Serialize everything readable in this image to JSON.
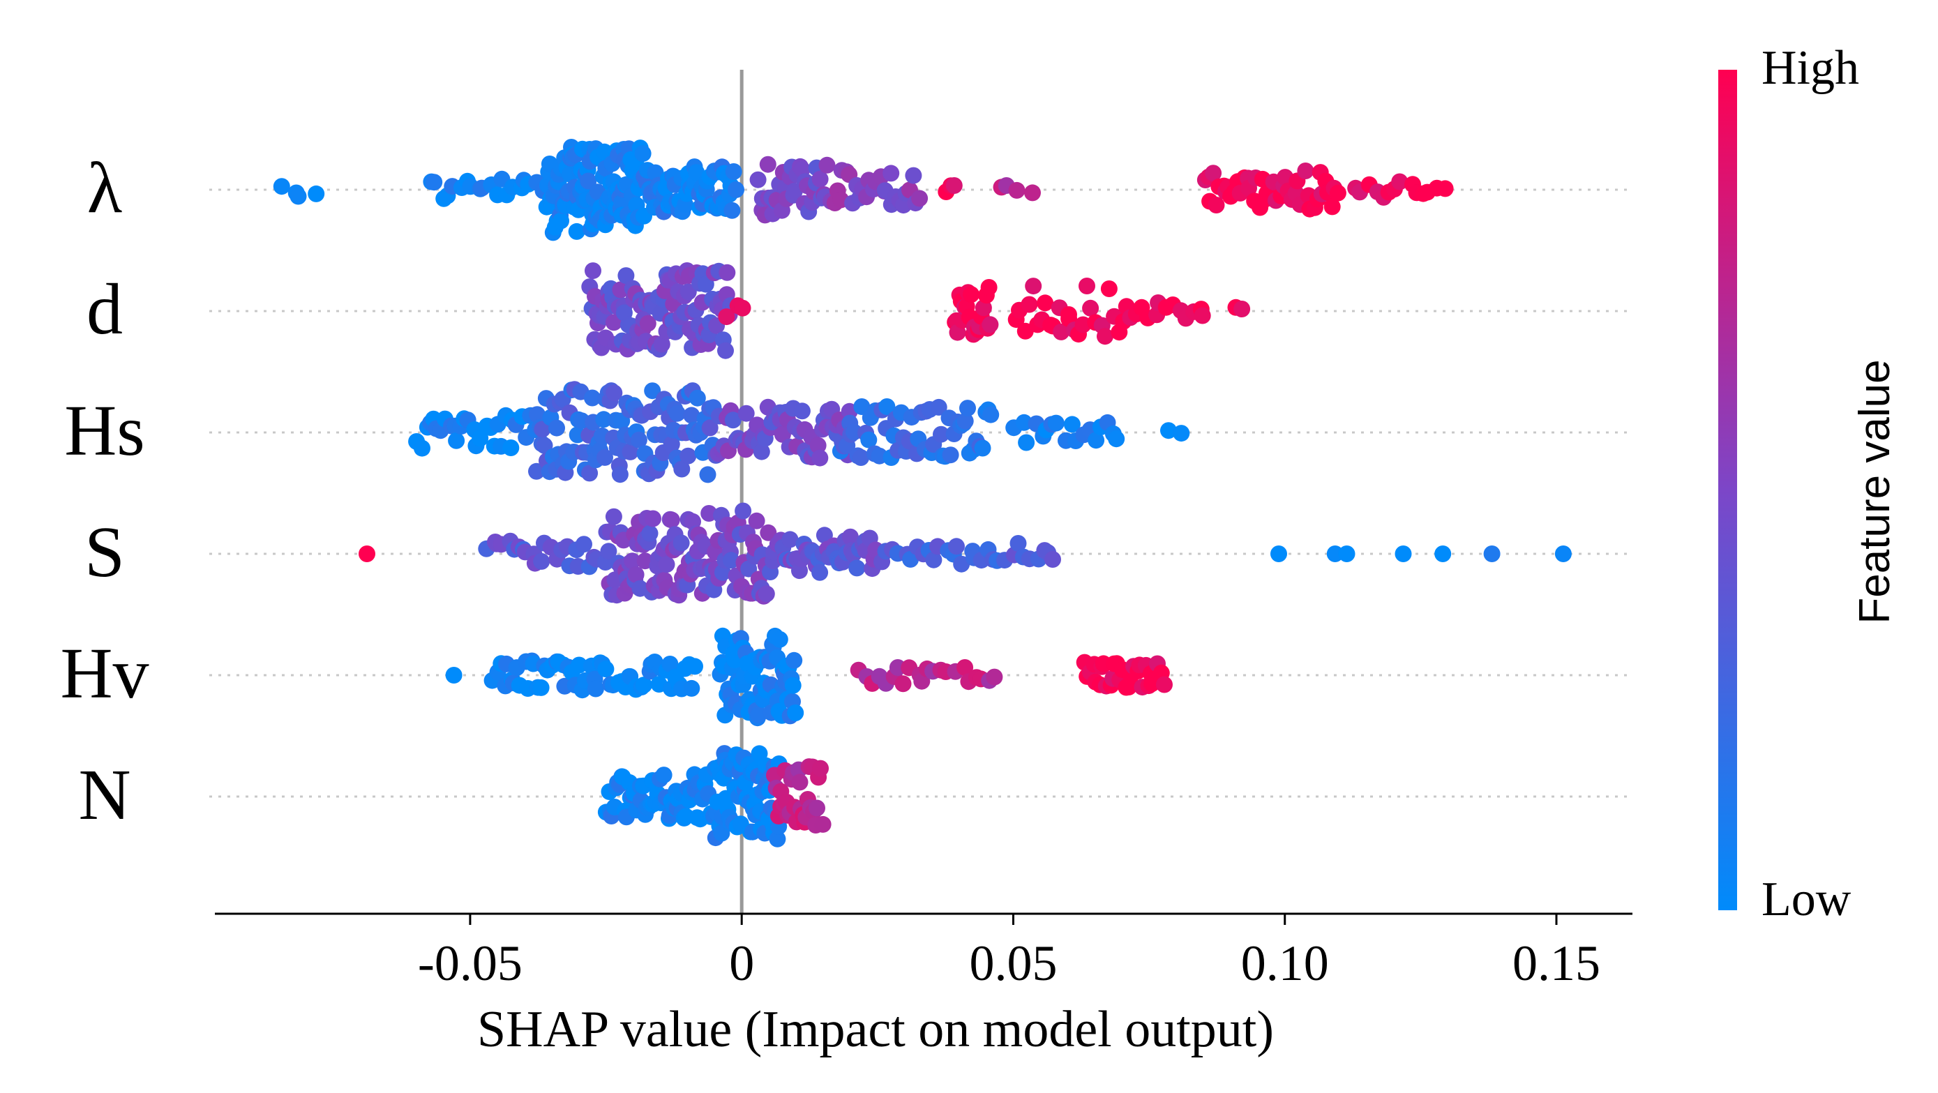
{
  "chart_data": {
    "type": "scatter",
    "subtype": "shap-beeswarm-summary",
    "xlabel": "SHAP value (Impact on model output)",
    "x_tick_labels": [
      "-0.05",
      "0",
      "0.05",
      "0.10",
      "0.15"
    ],
    "x_ticks": [
      -0.05,
      0,
      0.05,
      0.1,
      0.15
    ],
    "xlim": [
      -0.097,
      0.164
    ],
    "zero_line": 0,
    "colorbar": {
      "title": "Feature value",
      "high_label": "High",
      "low_label": "Low",
      "high_color": "#ff0051",
      "mid_color": "#7c46c8",
      "low_color": "#008bfb"
    },
    "features": [
      {
        "name": "λ",
        "clusters": [
          {
            "lo": -0.086,
            "hi": -0.078,
            "n": 4,
            "spread": 0.2,
            "color": 0
          },
          {
            "lo": -0.058,
            "hi": -0.036,
            "n": 20,
            "spread": 0.3,
            "color": 0.05
          },
          {
            "lo": -0.036,
            "hi": -0.018,
            "n": 110,
            "spread": 1.0,
            "color": 0.05
          },
          {
            "lo": -0.018,
            "hi": -0.001,
            "n": 60,
            "spread": 0.55,
            "color": 0.08
          },
          {
            "lo": 0.003,
            "hi": 0.016,
            "n": 35,
            "spread": 0.6,
            "color": 0.45
          },
          {
            "lo": 0.016,
            "hi": 0.033,
            "n": 28,
            "spread": 0.45,
            "color": 0.55
          },
          {
            "lo": 0.037,
            "hi": 0.04,
            "n": 3,
            "spread": 0.1,
            "color": 0.95
          },
          {
            "lo": 0.047,
            "hi": 0.054,
            "n": 4,
            "spread": 0.1,
            "color": 0.75
          },
          {
            "lo": 0.085,
            "hi": 0.11,
            "n": 45,
            "spread": 0.45,
            "color": 0.96
          },
          {
            "lo": 0.112,
            "hi": 0.13,
            "n": 14,
            "spread": 0.2,
            "color": 0.96
          }
        ]
      },
      {
        "name": "d",
        "clusters": [
          {
            "lo": -0.028,
            "hi": -0.002,
            "n": 110,
            "spread": 0.95,
            "color": 0.45
          },
          {
            "lo": -0.003,
            "hi": 0.001,
            "n": 3,
            "spread": 0.15,
            "color": 0.8
          },
          {
            "lo": 0.039,
            "hi": 0.046,
            "n": 22,
            "spread": 0.55,
            "color": 0.97
          },
          {
            "lo": 0.05,
            "hi": 0.072,
            "n": 28,
            "spread": 0.6,
            "color": 0.96
          },
          {
            "lo": 0.072,
            "hi": 0.086,
            "n": 12,
            "spread": 0.2,
            "color": 0.96
          },
          {
            "lo": 0.09,
            "hi": 0.093,
            "n": 2,
            "spread": 0.1,
            "color": 0.96
          }
        ]
      },
      {
        "name": "Hs",
        "clusters": [
          {
            "lo": -0.06,
            "hi": -0.038,
            "n": 30,
            "spread": 0.4,
            "color": 0.05
          },
          {
            "lo": -0.038,
            "hi": -0.005,
            "n": 110,
            "spread": 1.0,
            "color": 0.25
          },
          {
            "lo": -0.005,
            "hi": 0.02,
            "n": 60,
            "spread": 0.6,
            "color": 0.45
          },
          {
            "lo": 0.018,
            "hi": 0.046,
            "n": 55,
            "spread": 0.6,
            "color": 0.2
          },
          {
            "lo": 0.05,
            "hi": 0.07,
            "n": 18,
            "spread": 0.25,
            "color": 0.05
          },
          {
            "lo": 0.077,
            "hi": 0.081,
            "n": 2,
            "spread": 0.1,
            "color": 0.05
          }
        ]
      },
      {
        "name": "S",
        "clusters": [
          {
            "lo": -0.069,
            "hi": -0.069,
            "n": 1,
            "spread": 0.0,
            "color": 0.96
          },
          {
            "lo": -0.047,
            "hi": -0.025,
            "n": 25,
            "spread": 0.3,
            "color": 0.35
          },
          {
            "lo": -0.025,
            "hi": 0.005,
            "n": 120,
            "spread": 1.0,
            "color": 0.45
          },
          {
            "lo": 0.005,
            "hi": 0.025,
            "n": 45,
            "spread": 0.45,
            "color": 0.4
          },
          {
            "lo": 0.025,
            "hi": 0.058,
            "n": 30,
            "spread": 0.25,
            "color": 0.3
          },
          {
            "lo": 0.095,
            "hi": 0.152,
            "n": 7,
            "spread": 0.0,
            "color": 0.02
          }
        ]
      },
      {
        "name": "Hv",
        "clusters": [
          {
            "lo": -0.053,
            "hi": -0.052,
            "n": 1,
            "spread": 0.0,
            "color": 0.02
          },
          {
            "lo": -0.046,
            "hi": -0.008,
            "n": 60,
            "spread": 0.35,
            "color": 0.03
          },
          {
            "lo": -0.004,
            "hi": 0.01,
            "n": 70,
            "spread": 1.0,
            "color": 0.05
          },
          {
            "lo": 0.021,
            "hi": 0.047,
            "n": 22,
            "spread": 0.2,
            "color": 0.72
          },
          {
            "lo": 0.063,
            "hi": 0.078,
            "n": 30,
            "spread": 0.3,
            "color": 0.97
          }
        ]
      },
      {
        "name": "N",
        "clusters": [
          {
            "lo": -0.025,
            "hi": -0.005,
            "n": 60,
            "spread": 0.55,
            "color": 0.04
          },
          {
            "lo": -0.005,
            "hi": 0.007,
            "n": 70,
            "spread": 1.0,
            "color": 0.05
          },
          {
            "lo": 0.006,
            "hi": 0.015,
            "n": 30,
            "spread": 0.7,
            "color": 0.75
          }
        ]
      }
    ]
  }
}
